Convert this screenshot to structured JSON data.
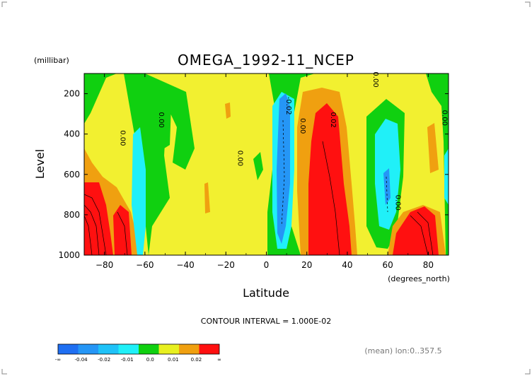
{
  "chart_data": {
    "type": "heatmap",
    "subtype": "filled-contour",
    "title": "OMEGA_1992-11_NCEP",
    "xlabel": "Latitude",
    "xunits": "(degrees_north)",
    "ylabel": "Level",
    "yunits": "(millibar)",
    "xlim": [
      -90,
      90
    ],
    "ylim": [
      1000,
      100
    ],
    "x_ticks": [
      -80,
      -60,
      -40,
      -20,
      0,
      20,
      40,
      60,
      80
    ],
    "y_ticks": [
      200,
      400,
      600,
      800,
      1000
    ],
    "contour_interval_text": "CONTOUR INTERVAL = 1.000E-02",
    "mean_note": "(mean) lon:0..357.5",
    "contour_labels": [
      {
        "text": "0.00",
        "lat": -72,
        "lev": 420
      },
      {
        "text": "0.00",
        "lat": -53,
        "lev": 330
      },
      {
        "text": "0.00",
        "lat": -14,
        "lev": 520
      },
      {
        "text": "-0.02",
        "lat": 10,
        "lev": 260
      },
      {
        "text": "0.00",
        "lat": 17,
        "lev": 360
      },
      {
        "text": "0.02",
        "lat": 32,
        "lev": 330
      },
      {
        "text": "0.00",
        "lat": 53,
        "lev": 130
      },
      {
        "text": "0.00",
        "lat": 64,
        "lev": 740
      },
      {
        "text": "0.00",
        "lat": 87,
        "lev": 320
      }
    ],
    "colorbar": {
      "labels": [
        "-∞",
        "-0.04",
        "-0.02",
        "-0.01",
        "0.0",
        "0.01",
        "0.02",
        "∞"
      ],
      "colors": [
        "#1f6ff2",
        "#2596f6",
        "#1fc2f8",
        "#20f0f8",
        "#10d010",
        "#e8f020",
        "#f0a010",
        "#ff1010"
      ]
    },
    "colors": {
      "strong_down": "#ff1010",
      "down": "#f0a010",
      "weak_down": "#f2f030",
      "neutral": "#10d010",
      "weak_up": "#20f0f8",
      "up": "#2596f6",
      "dark_line": "#000000"
    }
  }
}
